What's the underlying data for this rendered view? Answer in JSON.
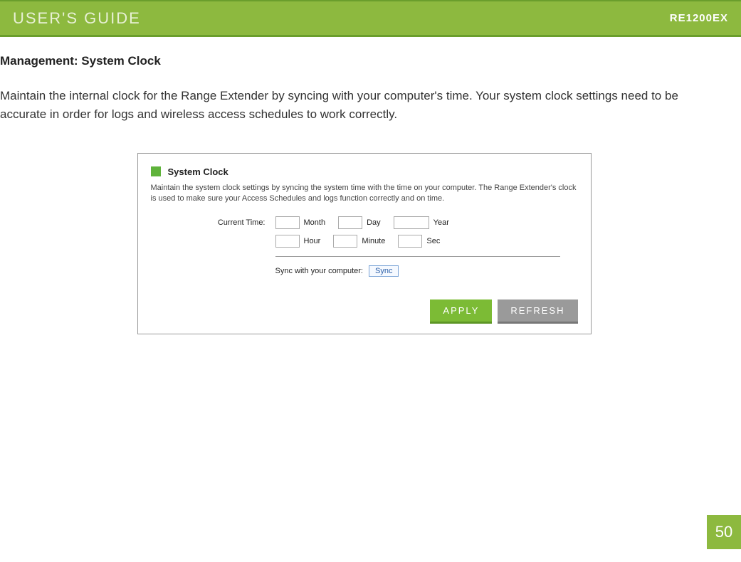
{
  "header": {
    "title": "USER'S GUIDE",
    "model": "RE1200EX",
    "bg_color": "#8db93f",
    "title_color": "#e8f0d5",
    "model_color": "#ffffff"
  },
  "section": {
    "title": "Management: System Clock",
    "intro": "Maintain the internal clock for the Range Extender by syncing with your computer's time. Your system clock settings need to be accurate in order for logs and wireless access schedules to work correctly."
  },
  "panel": {
    "title": "System Clock",
    "accent_color": "#5fb33b",
    "description": "Maintain the system clock settings by syncing the system time with the time on your computer. The Range Extender's clock is used to make sure your Access Schedules and logs function correctly and on time.",
    "current_time_label": "Current Time:",
    "fields": {
      "month": {
        "label": "Month",
        "value": ""
      },
      "day": {
        "label": "Day",
        "value": ""
      },
      "year": {
        "label": "Year",
        "value": ""
      },
      "hour": {
        "label": "Hour",
        "value": ""
      },
      "minute": {
        "label": "Minute",
        "value": ""
      },
      "sec": {
        "label": "Sec",
        "value": ""
      }
    },
    "sync_label": "Sync with your computer:",
    "sync_button": "Sync",
    "apply_label": "APPLY",
    "refresh_label": "REFRESH",
    "apply_bg": "#7cbb35",
    "refresh_bg": "#9a9a9a"
  },
  "page_number": "50"
}
